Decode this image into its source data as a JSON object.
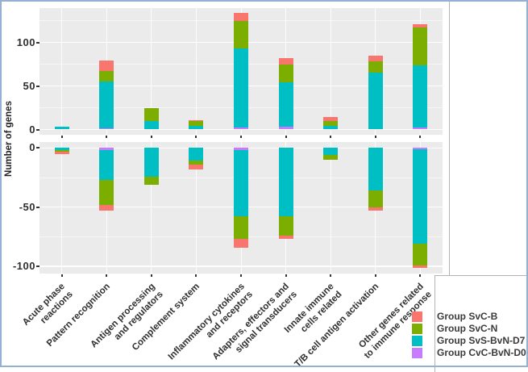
{
  "chart_data": {
    "type": "bar",
    "subtype": "diverging-stacked-facets",
    "title": "",
    "xlabel": "",
    "ylabel": "Number of genes",
    "grid": true,
    "legend_position": "bottom-right",
    "categories": [
      "Acute phase\nreactions",
      "Pattern recognition",
      "Antigen processing\nand regulators",
      "Complement system",
      "Inflammatory cytokines\nand receptors",
      "Adapters, effectors and\nsignal transducers",
      "Innate immune\ncells related",
      "T/B cell antigen activation",
      "Other genes related\nto immune response"
    ],
    "panels": {
      "up": {
        "yticks": [
          0,
          50,
          100
        ],
        "ylim": [
          0,
          139
        ],
        "series": [
          {
            "name": "Group CvC-BvN-D0",
            "color": "#C77CFF",
            "values": [
              0,
              1,
              0,
              0,
              2,
              3,
              0,
              0,
              2
            ]
          },
          {
            "name": "Group SvS-BvN-D7",
            "color": "#00BFC4",
            "values": [
              3,
              54,
              10,
              4,
              91,
              51,
              4,
              65,
              72
            ]
          },
          {
            "name": "Group SvC-N",
            "color": "#7CAE00",
            "values": [
              0,
              12,
              15,
              6,
              32,
              21,
              6,
              13,
              43
            ]
          },
          {
            "name": "Group SvC-B",
            "color": "#F8766D",
            "values": [
              0,
              12,
              0,
              1,
              9,
              7,
              4,
              7,
              4
            ]
          }
        ]
      },
      "down": {
        "yticks": [
          0,
          -50,
          -100
        ],
        "ylim": [
          -111,
          0
        ],
        "series": [
          {
            "name": "Group CvC-BvN-D0",
            "color": "#C77CFF",
            "values": [
              0,
              -2,
              0,
              0,
              -2,
              0,
              0,
              0,
              -1
            ]
          },
          {
            "name": "Group SvS-BvN-D7",
            "color": "#00BFC4",
            "values": [
              -2,
              -25,
              -24,
              -11,
              -56,
              -58,
              -6,
              -36,
              -80
            ]
          },
          {
            "name": "Group SvC-N",
            "color": "#7CAE00",
            "values": [
              -1,
              -21,
              -7,
              -3,
              -19,
              -16,
              -4,
              -14,
              -18
            ]
          },
          {
            "name": "Group SvC-B",
            "color": "#F8766D",
            "values": [
              -2,
              -5,
              0,
              -4,
              -7,
              -3,
              0,
              -3,
              -2
            ]
          }
        ]
      }
    },
    "ytick_labels_up": [
      "100",
      "50",
      "0"
    ],
    "ytick_labels_down": [
      "0",
      "-50",
      "-100"
    ]
  },
  "legend": {
    "items": [
      {
        "label": "Group SvC-B",
        "color": "#F8766D"
      },
      {
        "label": "Group SvC-N",
        "color": "#7CAE00"
      },
      {
        "label": "Group SvS-BvN-D7",
        "color": "#00BFC4"
      },
      {
        "label": "Group CvC-BvN-D0",
        "color": "#C77CFF"
      }
    ]
  },
  "window": {
    "border_color": "#94b0d2",
    "panel_background": "#ebebeb"
  }
}
